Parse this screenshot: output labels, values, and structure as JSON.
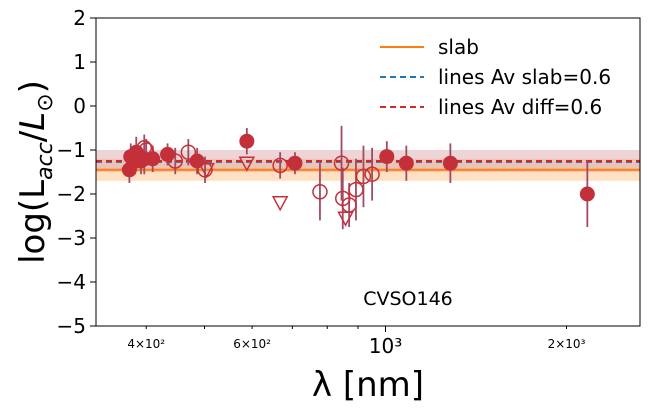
{
  "chart_data": {
    "type": "scatter",
    "title": "",
    "xlabel": "λ [nm]",
    "ylabel": "log(L_acc/L_⊙)",
    "xscale": "log",
    "xlim": [
      330,
      2650
    ],
    "ylim": [
      -5,
      2
    ],
    "grid": false,
    "x_major_ticks": [
      {
        "value": 1000,
        "label": "10³"
      }
    ],
    "x_minor_ticks": [
      {
        "value": 400,
        "label": "4×10²"
      },
      {
        "value": 600,
        "label": "6×10²"
      },
      {
        "value": 2000,
        "label": "2×10³"
      }
    ],
    "y_ticks": [
      2,
      1,
      0,
      -1,
      -2,
      -3,
      -4,
      -5
    ],
    "y_tick_labels": [
      "2",
      "1",
      "0",
      "−1",
      "−2",
      "−3",
      "−4",
      "−5"
    ],
    "annotation": "CVSO146",
    "legend": {
      "placement": "top-right",
      "entries": [
        {
          "label": "slab",
          "style": "solid",
          "color": "#ff7f0e"
        },
        {
          "label": "lines Av slab=0.6",
          "style": "dashed",
          "color": "#1f77b4"
        },
        {
          "label": "lines Av diff=0.6",
          "style": "dashed",
          "color": "#d62728"
        }
      ]
    },
    "horizontal_lines": [
      {
        "name": "slab",
        "y": -1.45,
        "band": [
          -1.7,
          -1.2
        ],
        "style": "solid",
        "color": "#ff7f0e",
        "band_color": "#ffbb78"
      },
      {
        "name": "lines Av slab=0.6",
        "y": -1.27,
        "style": "dashed",
        "color": "#1f77b4"
      },
      {
        "name": "lines Av diff=0.6",
        "y": -1.25,
        "band": [
          -1.0,
          -1.5
        ],
        "style": "dashed",
        "color": "#d62728",
        "band_color": "#d6a0a6"
      }
    ],
    "marker_color": "#c4303a",
    "errorbar_color": "#a04a68",
    "series": [
      {
        "name": "filled circles",
        "marker": "filled-circle",
        "points": [
          {
            "x": 375,
            "y": -1.45,
            "yerr": 0.3
          },
          {
            "x": 377,
            "y": -1.15,
            "yerr": 0.3
          },
          {
            "x": 385,
            "y": -1.05,
            "yerr": 0.35
          },
          {
            "x": 392,
            "y": -1.25,
            "yerr": 0.3
          },
          {
            "x": 397,
            "y": -1.2,
            "yerr": 0.35
          },
          {
            "x": 410,
            "y": -1.2,
            "yerr": 0.3
          },
          {
            "x": 434,
            "y": -1.1,
            "yerr": 0.25
          },
          {
            "x": 486,
            "y": -1.25,
            "yerr": 0.3
          },
          {
            "x": 588,
            "y": -0.8,
            "yerr": 0.3
          },
          {
            "x": 707,
            "y": -1.3,
            "yerr": 0.25
          },
          {
            "x": 1005,
            "y": -1.15,
            "yerr": 0.35
          },
          {
            "x": 1083,
            "y": -1.3,
            "yerr": 0.4
          },
          {
            "x": 1282,
            "y": -1.3,
            "yerr": 0.45
          },
          {
            "x": 2166,
            "y": -2.0,
            "yerr": 0.75
          }
        ]
      },
      {
        "name": "open circles",
        "marker": "open-circle",
        "points": [
          {
            "x": 383,
            "y": -1.25,
            "yerr": 0.3
          },
          {
            "x": 397,
            "y": -0.95,
            "yerr": 0.3
          },
          {
            "x": 400,
            "y": -1.0,
            "yerr": 0.25
          },
          {
            "x": 447,
            "y": -1.25,
            "yerr": 0.3
          },
          {
            "x": 470,
            "y": -1.05,
            "yerr": 0.3
          },
          {
            "x": 501,
            "y": -1.45,
            "yerr": 0.3
          },
          {
            "x": 668,
            "y": -1.35,
            "yerr": 0.3
          },
          {
            "x": 778,
            "y": -1.95,
            "yerr": 0.65
          },
          {
            "x": 845,
            "y": -1.3,
            "yerr": 0.85
          },
          {
            "x": 849,
            "y": -2.1,
            "yerr": 0.7
          },
          {
            "x": 870,
            "y": -2.25,
            "yerr": 0.5
          },
          {
            "x": 893,
            "y": -1.9,
            "yerr": 0.7
          },
          {
            "x": 919,
            "y": -1.6,
            "yerr": 0.7
          },
          {
            "x": 950,
            "y": -1.55,
            "yerr": 0.6
          }
        ]
      },
      {
        "name": "open triangles (upper limits)",
        "marker": "open-triangle-down",
        "points": [
          {
            "x": 504,
            "y": -1.45
          },
          {
            "x": 588,
            "y": -1.3
          },
          {
            "x": 668,
            "y": -2.2
          },
          {
            "x": 858,
            "y": -2.55
          }
        ]
      }
    ]
  }
}
